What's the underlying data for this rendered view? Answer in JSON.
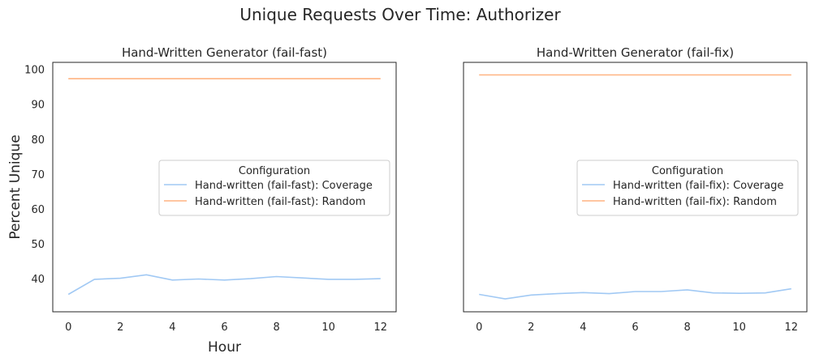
{
  "figure_title": "Unique Requests Over Time: Authorizer",
  "colors": {
    "coverage": "#a1c9f4",
    "random": "#ffb482"
  },
  "chart_data": [
    {
      "type": "line",
      "title": "Hand-Written Generator (fail-fast)",
      "xlabel": "Hour",
      "ylabel": "Percent Unique",
      "xlim": [
        -0.6,
        12.6
      ],
      "ylim": [
        30.5,
        102
      ],
      "xticks": [
        0,
        2,
        4,
        6,
        8,
        10,
        12
      ],
      "yticks": [
        40,
        50,
        60,
        70,
        80,
        90,
        100
      ],
      "show_yticks": true,
      "grid": false,
      "legend": {
        "title": "Configuration",
        "position": "center-right"
      },
      "x": [
        0,
        1,
        2,
        3,
        4,
        5,
        6,
        7,
        8,
        9,
        10,
        11,
        12
      ],
      "series": [
        {
          "name": "Hand-written (fail-fast): Coverage",
          "color": "#a1c9f4",
          "values": [
            35.5,
            39.8,
            40.1,
            41.1,
            39.6,
            39.9,
            39.6,
            40.0,
            40.6,
            40.2,
            39.8,
            39.8,
            40.0
          ]
        },
        {
          "name": "Hand-written (fail-fast): Random",
          "color": "#ffb482",
          "values": [
            97.3,
            97.3,
            97.3,
            97.3,
            97.3,
            97.3,
            97.3,
            97.3,
            97.3,
            97.3,
            97.3,
            97.3,
            97.3
          ]
        }
      ]
    },
    {
      "type": "line",
      "title": "Hand-Written Generator (fail-fix)",
      "xlabel": "",
      "ylabel": "",
      "xlim": [
        -0.6,
        12.6
      ],
      "ylim": [
        30.5,
        102
      ],
      "xticks": [
        0,
        2,
        4,
        6,
        8,
        10,
        12
      ],
      "yticks": [
        40,
        50,
        60,
        70,
        80,
        90,
        100
      ],
      "show_yticks": false,
      "grid": false,
      "legend": {
        "title": "Configuration",
        "position": "center-right"
      },
      "x": [
        0,
        1,
        2,
        3,
        4,
        5,
        6,
        7,
        8,
        9,
        10,
        11,
        12
      ],
      "series": [
        {
          "name": "Hand-written (fail-fix): Coverage",
          "color": "#a1c9f4",
          "values": [
            35.5,
            34.2,
            35.3,
            35.7,
            36.0,
            35.7,
            36.3,
            36.3,
            36.8,
            35.9,
            35.8,
            35.9,
            37.1
          ]
        },
        {
          "name": "Hand-written (fail-fix): Random",
          "color": "#ffb482",
          "values": [
            98.4,
            98.4,
            98.4,
            98.4,
            98.4,
            98.4,
            98.4,
            98.4,
            98.4,
            98.4,
            98.4,
            98.4,
            98.4
          ]
        }
      ]
    }
  ]
}
